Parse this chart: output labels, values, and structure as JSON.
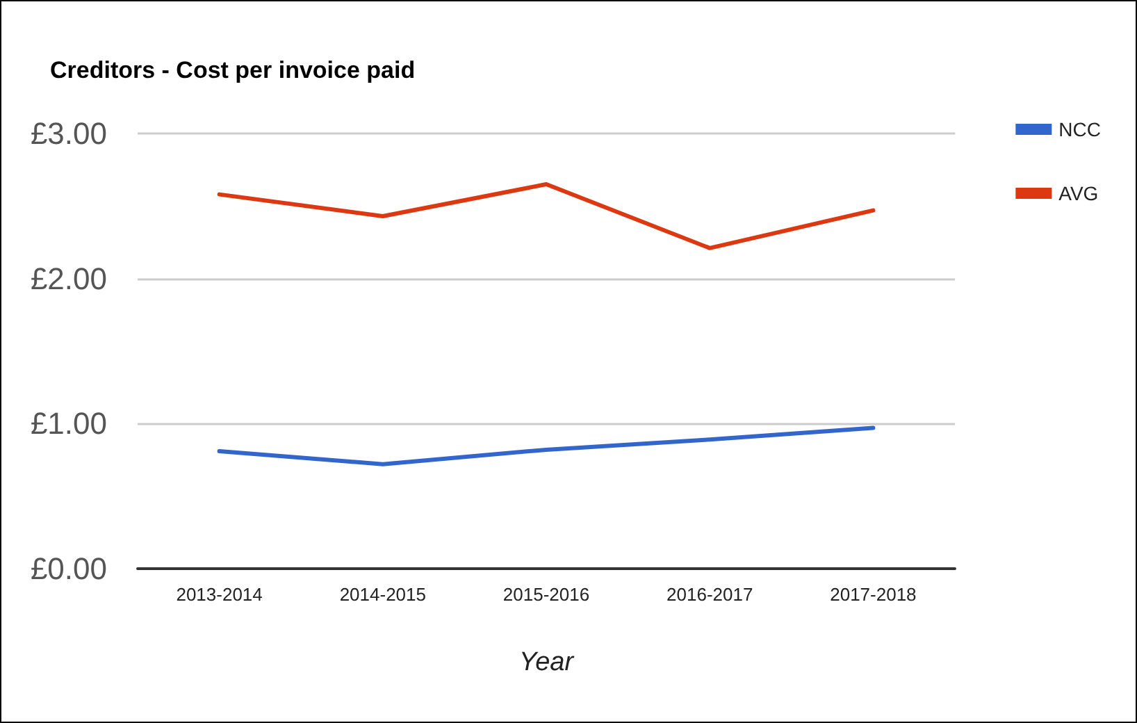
{
  "chart_data": {
    "type": "line",
    "title": "Creditors - Cost per invoice paid",
    "xlabel": "Year",
    "categories": [
      "2013-2014",
      "2014-2015",
      "2015-2016",
      "2016-2017",
      "2017-2018"
    ],
    "series": [
      {
        "name": "NCC",
        "color": "#3366cc",
        "values": [
          0.81,
          0.72,
          0.82,
          0.89,
          0.97
        ]
      },
      {
        "name": "AVG",
        "color": "#dc3912",
        "values": [
          2.58,
          2.43,
          2.65,
          2.21,
          2.47
        ]
      }
    ],
    "ylim": [
      0,
      3
    ],
    "yticks": [
      {
        "value": 0,
        "label": "£0.00"
      },
      {
        "value": 1,
        "label": "£1.00"
      },
      {
        "value": 2,
        "label": "£2.00"
      },
      {
        "value": 3,
        "label": "£3.00"
      }
    ],
    "grid": "y",
    "legend": "right",
    "marker": "none",
    "line_style": "solid"
  }
}
